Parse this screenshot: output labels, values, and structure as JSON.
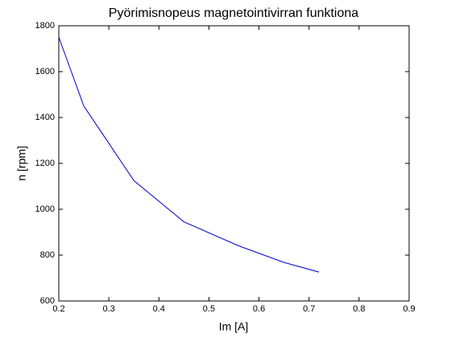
{
  "chart_data": {
    "type": "line",
    "title": "Pyörimisnopeus magnetointivirran funktiona",
    "x_label": "Im [A]",
    "y_label": "n [rpm]",
    "x": [
      0.2,
      0.25,
      0.35,
      0.45,
      0.56,
      0.65,
      0.72
    ],
    "series": [
      {
        "color": "#0000cc",
        "values": [
          1750,
          1450,
          1125,
          945,
          840,
          768,
          726
        ]
      }
    ],
    "xlim": [
      0.2,
      0.9
    ],
    "xticks": [
      0.2,
      0.3,
      0.4,
      0.5,
      0.6,
      0.7,
      0.8,
      0.9
    ],
    "ylim": [
      600,
      1800
    ],
    "yticks": [
      600,
      800,
      1000,
      1200,
      1400,
      1600,
      1800
    ]
  }
}
